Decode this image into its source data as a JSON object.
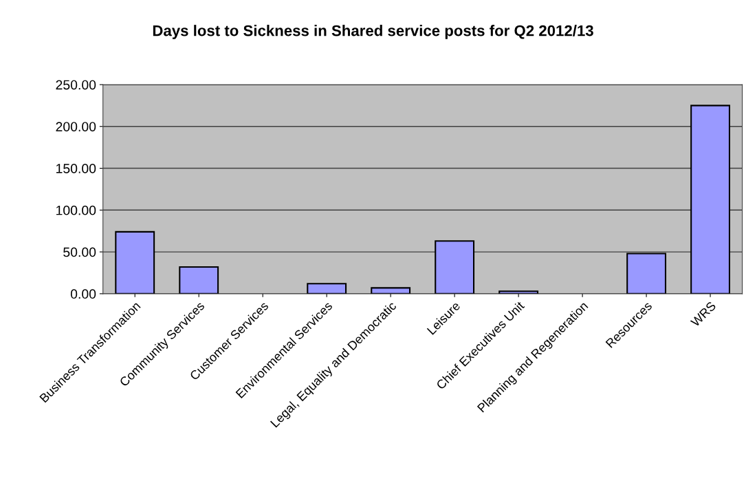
{
  "chart_data": {
    "type": "bar",
    "title": "Days lost to Sickness in Shared service posts for Q2 2012/13",
    "categories": [
      "Business Transformation",
      "Community Services",
      "Customer Services",
      "Environmental Services",
      "Legal, Equality and Democratic",
      "Leisure",
      "Chief Executives Unit",
      "Planning and Regeneration",
      "Resources",
      "WRS"
    ],
    "values": [
      74,
      32,
      null,
      12,
      7,
      63,
      3,
      null,
      48,
      225
    ],
    "color": "#9999ff",
    "ylim": [
      0,
      250
    ],
    "yticks": [
      {
        "value": 0,
        "label": "0.00"
      },
      {
        "value": 50,
        "label": "50.00"
      },
      {
        "value": 100,
        "label": "100.00"
      },
      {
        "value": 150,
        "label": "150.00"
      },
      {
        "value": 200,
        "label": "200.00"
      },
      {
        "value": 250,
        "label": "250.00"
      }
    ],
    "grid": "y",
    "legend": false
  }
}
